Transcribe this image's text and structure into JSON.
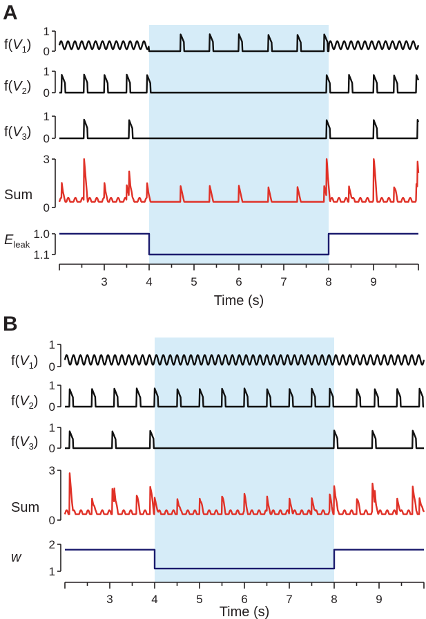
{
  "chart_data": [
    {
      "panel": "A",
      "type": "line",
      "xlabel": "Time (s)",
      "xlim": [
        2,
        10
      ],
      "xticks": [
        "3",
        "4",
        "5",
        "6",
        "7",
        "8",
        "9"
      ],
      "shaded_interval": [
        4,
        8
      ],
      "shade_color": "#d6ecf8",
      "rows": [
        {
          "label_main": "f(",
          "label_var": "V",
          "label_sub": "1",
          "label_close": ")",
          "ylim": [
            0,
            1
          ],
          "yticks": [
            "1",
            "0"
          ],
          "color": "#111111",
          "note": "",
          "baseline": 0,
          "pulses_x": [
            4.7,
            5.35,
            6.0,
            6.65,
            7.3,
            7.9
          ],
          "oscillation_outside": true
        },
        {
          "label_main": "f(",
          "label_var": "V",
          "label_sub": "2",
          "label_close": ")",
          "ylim": [
            0,
            1
          ],
          "yticks": [
            "1",
            "0"
          ],
          "color": "#111111",
          "baseline": 0,
          "pulses_x": [
            2.05,
            2.55,
            3.0,
            3.5,
            3.95,
            7.95,
            8.45,
            9.0,
            9.45,
            9.95
          ]
        },
        {
          "label_main": "f(",
          "label_var": "V",
          "label_sub": "3",
          "label_close": ")",
          "ylim": [
            0,
            1
          ],
          "yticks": [
            "1",
            "0"
          ],
          "color": "#111111",
          "baseline": 0,
          "pulses_x": [
            2.55,
            3.55,
            7.95,
            9.0,
            9.98
          ]
        },
        {
          "label_main": "Sum",
          "label_var": "",
          "label_sub": "",
          "label_close": "",
          "ylim": [
            0,
            3
          ],
          "yticks": [
            "3",
            "0"
          ],
          "color": "#e03127"
        },
        {
          "label_main": "",
          "label_var": "E",
          "label_sub": "leak",
          "label_close": "",
          "ylim": [
            1.0,
            1.1
          ],
          "yticks": [
            "1.0",
            "1.1"
          ],
          "color": "#1c1c6e",
          "step": {
            "x": [
              2,
              4,
              4,
              8,
              8,
              10
            ],
            "y": [
              1.0,
              1.0,
              1.1,
              1.1,
              1.0,
              1.0
            ]
          }
        }
      ]
    },
    {
      "panel": "B",
      "type": "line",
      "xlabel": "Time (s)",
      "xlim": [
        2,
        10
      ],
      "xticks": [
        "3",
        "4",
        "5",
        "6",
        "7",
        "8",
        "9"
      ],
      "shaded_interval": [
        4,
        8
      ],
      "shade_color": "#d6ecf8",
      "rows": [
        {
          "label_main": "f(",
          "label_var": "V",
          "label_sub": "1",
          "label_close": ")",
          "ylim": [
            0,
            1
          ],
          "yticks": [
            "1",
            "0"
          ],
          "color": "#111111"
        },
        {
          "label_main": "f(",
          "label_var": "V",
          "label_sub": "2",
          "label_close": ")",
          "ylim": [
            0,
            1
          ],
          "yticks": [
            "1",
            "0"
          ],
          "color": "#111111",
          "pulses_x": [
            2.1,
            2.6,
            3.1,
            3.6,
            4.0,
            4.5,
            5.0,
            5.5,
            6.0,
            6.5,
            7.0,
            7.5,
            7.9,
            8.5,
            8.9,
            9.4,
            9.9
          ]
        },
        {
          "label_main": "f(",
          "label_var": "V",
          "label_sub": "3",
          "label_close": ")",
          "ylim": [
            0,
            1
          ],
          "yticks": [
            "1",
            "0"
          ],
          "color": "#111111",
          "pulses_x": [
            2.1,
            3.05,
            3.9,
            8.0,
            8.85,
            9.75
          ]
        },
        {
          "label_main": "Sum",
          "label_var": "",
          "label_sub": "",
          "label_close": "",
          "ylim": [
            0,
            3
          ],
          "yticks": [
            "3",
            "0"
          ],
          "color": "#e03127"
        },
        {
          "label_main": "",
          "label_var": "w",
          "label_sub": "",
          "label_close": "",
          "ylim": [
            1,
            2
          ],
          "yticks": [
            "2",
            "1"
          ],
          "color": "#1c1c6e",
          "step": {
            "x": [
              2,
              4,
              4,
              8,
              8,
              10
            ],
            "y": [
              1.8,
              1.8,
              1.1,
              1.1,
              1.8,
              1.8
            ]
          }
        }
      ]
    }
  ]
}
